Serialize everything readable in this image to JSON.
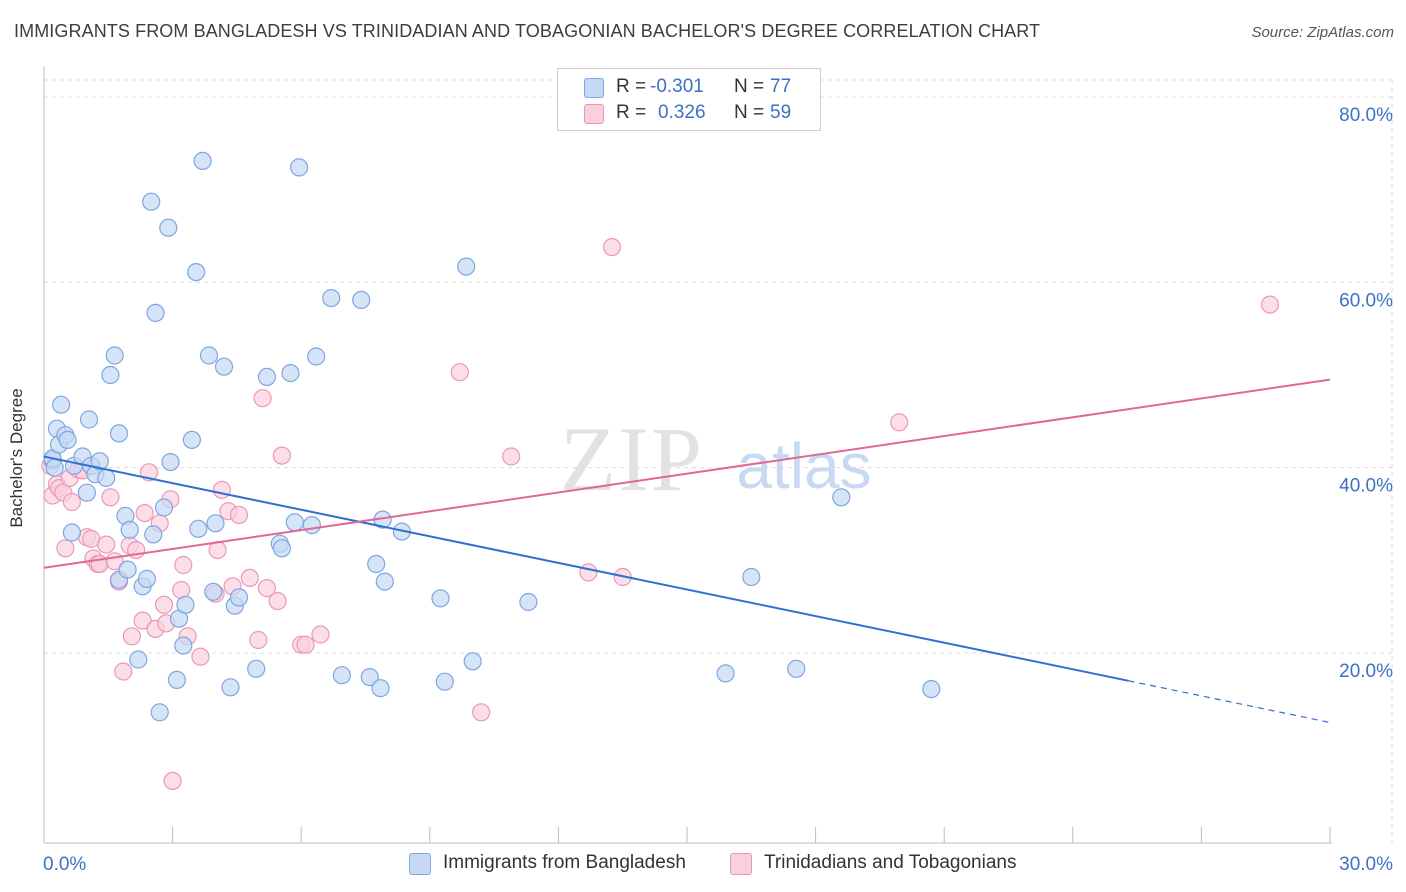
{
  "title": "IMMIGRANTS FROM BANGLADESH VS TRINIDADIAN AND TOBAGONIAN BACHELOR'S DEGREE CORRELATION CHART",
  "source": "Source: ZipAtlas.com",
  "watermark": {
    "zip": "ZIP",
    "atlas": "atlas"
  },
  "legend": {
    "rows": [
      {
        "r_label": "R =",
        "r_value": "-0.301",
        "n_label": "N =",
        "n_value": "77"
      },
      {
        "r_label": "R =",
        "r_value": "0.326",
        "n_label": "N =",
        "n_value": "59"
      }
    ]
  },
  "bottom_legend": [
    "Immigrants from Bangladesh",
    "Trinidadians and Tobagonians"
  ],
  "colors": {
    "blue_fill": "#c5d9f5",
    "blue_stroke": "#7ea6e0",
    "blue_line": "#2f6fd0",
    "pink_fill": "#f9d0de",
    "pink_stroke": "#eb98b6",
    "pink_line": "#e06895",
    "tick_label": "#3b72c4",
    "grid": "#dcdcdc"
  },
  "chart_data": {
    "type": "scatter",
    "title": "IMMIGRANTS FROM BANGLADESH VS TRINIDADIAN AND TOBAGONIAN BACHELOR'S DEGREE CORRELATION CHART",
    "xlabel": "",
    "ylabel": "Bachelor's Degree",
    "xlim": [
      0,
      30
    ],
    "ylim": [
      0,
      82
    ],
    "x_tick_labels": [
      {
        "value": 0,
        "label": "0.0%"
      },
      {
        "value": 30,
        "label": "30.0%"
      }
    ],
    "y_tick_labels": [
      {
        "value": 20,
        "label": "20.0%"
      },
      {
        "value": 40,
        "label": "40.0%"
      },
      {
        "value": 60,
        "label": "60.0%"
      },
      {
        "value": 80,
        "label": "80.0%"
      }
    ],
    "x_minor_ticks": [
      3,
      6,
      9,
      12,
      15,
      18,
      21,
      24,
      27,
      30
    ],
    "series": [
      {
        "name": "Immigrants from Bangladesh",
        "color": "blue",
        "trend": {
          "x0": 0,
          "y0": 41.2,
          "x1": 25.3,
          "y1": 17.0,
          "dash_to_x": 30,
          "dash_to_y": 12.5
        },
        "points": [
          [
            0.2,
            40.8
          ],
          [
            0.2,
            41.0
          ],
          [
            0.25,
            40.0
          ],
          [
            0.3,
            44.2
          ],
          [
            0.35,
            42.5
          ],
          [
            0.4,
            46.8
          ],
          [
            0.5,
            43.5
          ],
          [
            0.55,
            43.0
          ],
          [
            0.65,
            33.0
          ],
          [
            0.7,
            40.2
          ],
          [
            0.9,
            41.2
          ],
          [
            1.0,
            37.3
          ],
          [
            1.05,
            45.2
          ],
          [
            1.1,
            40.2
          ],
          [
            1.2,
            39.3
          ],
          [
            1.3,
            40.7
          ],
          [
            1.45,
            38.9
          ],
          [
            1.55,
            50.0
          ],
          [
            1.65,
            52.1
          ],
          [
            1.75,
            43.7
          ],
          [
            1.75,
            27.9
          ],
          [
            1.9,
            34.8
          ],
          [
            1.95,
            29.0
          ],
          [
            2.0,
            33.3
          ],
          [
            2.2,
            19.3
          ],
          [
            2.3,
            27.2
          ],
          [
            2.4,
            28.0
          ],
          [
            2.5,
            68.7
          ],
          [
            2.55,
            32.8
          ],
          [
            2.6,
            56.7
          ],
          [
            2.7,
            13.6
          ],
          [
            2.8,
            35.7
          ],
          [
            2.9,
            65.9
          ],
          [
            2.95,
            40.6
          ],
          [
            3.1,
            17.1
          ],
          [
            3.15,
            23.7
          ],
          [
            3.25,
            20.8
          ],
          [
            3.3,
            25.2
          ],
          [
            3.45,
            43.0
          ],
          [
            3.55,
            61.1
          ],
          [
            3.6,
            33.4
          ],
          [
            3.7,
            73.1
          ],
          [
            3.85,
            52.1
          ],
          [
            3.95,
            26.6
          ],
          [
            4.0,
            34.0
          ],
          [
            4.2,
            50.9
          ],
          [
            4.35,
            16.3
          ],
          [
            4.45,
            25.1
          ],
          [
            4.55,
            26.0
          ],
          [
            4.95,
            18.3
          ],
          [
            5.2,
            49.8
          ],
          [
            5.5,
            31.8
          ],
          [
            5.55,
            31.3
          ],
          [
            5.75,
            50.2
          ],
          [
            5.85,
            34.1
          ],
          [
            5.95,
            72.4
          ],
          [
            6.25,
            33.8
          ],
          [
            6.35,
            52.0
          ],
          [
            6.7,
            58.3
          ],
          [
            6.95,
            17.6
          ],
          [
            7.4,
            58.1
          ],
          [
            7.6,
            17.4
          ],
          [
            7.75,
            29.6
          ],
          [
            7.85,
            16.2
          ],
          [
            7.9,
            34.4
          ],
          [
            7.95,
            27.7
          ],
          [
            8.35,
            33.1
          ],
          [
            9.25,
            25.9
          ],
          [
            9.35,
            16.9
          ],
          [
            9.85,
            61.7
          ],
          [
            10.0,
            19.1
          ],
          [
            11.3,
            25.5
          ],
          [
            15.9,
            17.8
          ],
          [
            16.5,
            28.2
          ],
          [
            17.55,
            18.3
          ],
          [
            18.6,
            36.8
          ],
          [
            20.7,
            16.1
          ]
        ]
      },
      {
        "name": "Trinidadians and Tobagonians",
        "color": "pink",
        "trend": {
          "x0": 0,
          "y0": 29.2,
          "x1": 30,
          "y1": 49.5
        },
        "points": [
          [
            0.15,
            40.2
          ],
          [
            0.2,
            37.0
          ],
          [
            0.3,
            38.2
          ],
          [
            0.35,
            37.8
          ],
          [
            0.45,
            37.3
          ],
          [
            0.5,
            31.3
          ],
          [
            0.6,
            38.9
          ],
          [
            0.65,
            36.3
          ],
          [
            0.8,
            39.8
          ],
          [
            0.9,
            39.7
          ],
          [
            1.0,
            32.5
          ],
          [
            1.1,
            32.3
          ],
          [
            1.15,
            30.2
          ],
          [
            1.25,
            29.6
          ],
          [
            1.3,
            29.6
          ],
          [
            1.45,
            31.7
          ],
          [
            1.55,
            36.8
          ],
          [
            1.65,
            29.9
          ],
          [
            1.75,
            27.7
          ],
          [
            1.85,
            18.0
          ],
          [
            2.0,
            31.6
          ],
          [
            2.05,
            21.8
          ],
          [
            2.15,
            31.1
          ],
          [
            2.3,
            23.5
          ],
          [
            2.35,
            35.1
          ],
          [
            2.45,
            39.5
          ],
          [
            2.6,
            22.6
          ],
          [
            2.7,
            34.0
          ],
          [
            2.8,
            25.2
          ],
          [
            2.85,
            23.2
          ],
          [
            2.95,
            36.6
          ],
          [
            3.0,
            6.2
          ],
          [
            3.2,
            26.8
          ],
          [
            3.25,
            29.5
          ],
          [
            3.35,
            21.8
          ],
          [
            3.65,
            19.6
          ],
          [
            4.0,
            26.4
          ],
          [
            4.05,
            31.1
          ],
          [
            4.15,
            37.6
          ],
          [
            4.3,
            35.3
          ],
          [
            4.4,
            27.2
          ],
          [
            4.55,
            34.9
          ],
          [
            4.8,
            28.1
          ],
          [
            5.0,
            21.4
          ],
          [
            5.1,
            47.5
          ],
          [
            5.2,
            27.0
          ],
          [
            5.45,
            25.6
          ],
          [
            5.55,
            41.3
          ],
          [
            6.0,
            20.9
          ],
          [
            6.1,
            20.9
          ],
          [
            6.45,
            22.0
          ],
          [
            9.7,
            50.3
          ],
          [
            10.2,
            13.6
          ],
          [
            10.9,
            41.2
          ],
          [
            12.7,
            28.7
          ],
          [
            13.25,
            63.8
          ],
          [
            13.5,
            28.2
          ],
          [
            19.95,
            44.9
          ],
          [
            28.6,
            57.6
          ]
        ]
      }
    ]
  }
}
